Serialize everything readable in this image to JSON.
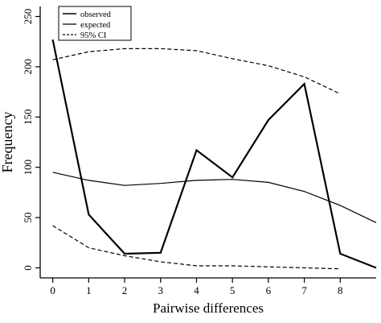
{
  "chart_data": {
    "type": "line",
    "title": "",
    "xlabel": "Pairwise differences",
    "ylabel": "Frequency",
    "x_ticks": [
      0,
      1,
      2,
      3,
      4,
      5,
      6,
      7,
      8
    ],
    "y_ticks": [
      0,
      50,
      100,
      150,
      200,
      250
    ],
    "xlim": [
      -0.35,
      9.0
    ],
    "ylim": [
      -10,
      260
    ],
    "grid": false,
    "legend_position": "top-left",
    "series": [
      {
        "name": "observed",
        "style": "solid-thick",
        "color": "#000000",
        "x": [
          0,
          1,
          2,
          3,
          4,
          5,
          6,
          7,
          8,
          9
        ],
        "y": [
          227,
          53,
          14,
          15,
          117,
          90,
          147,
          183,
          14,
          0
        ]
      },
      {
        "name": "expected",
        "style": "solid-thin",
        "color": "#000000",
        "x": [
          0,
          1,
          2,
          3,
          4,
          5,
          6,
          7,
          8,
          9
        ],
        "y": [
          95,
          87,
          82,
          84,
          87,
          88,
          85,
          76,
          62,
          45
        ]
      },
      {
        "name": "95% CI",
        "style": "dashed",
        "color": "#000000",
        "x": [
          0,
          1,
          2,
          3,
          4,
          5,
          6,
          7,
          8
        ],
        "y": [
          207,
          215,
          218,
          218,
          216,
          208,
          201,
          190,
          173
        ]
      },
      {
        "name": "",
        "legend": false,
        "style": "dashed",
        "color": "#000000",
        "x": [
          0,
          1,
          2,
          3,
          4,
          5,
          6,
          7,
          8
        ],
        "y": [
          42,
          20,
          12,
          6,
          2,
          2,
          1,
          0,
          -1
        ]
      }
    ]
  }
}
